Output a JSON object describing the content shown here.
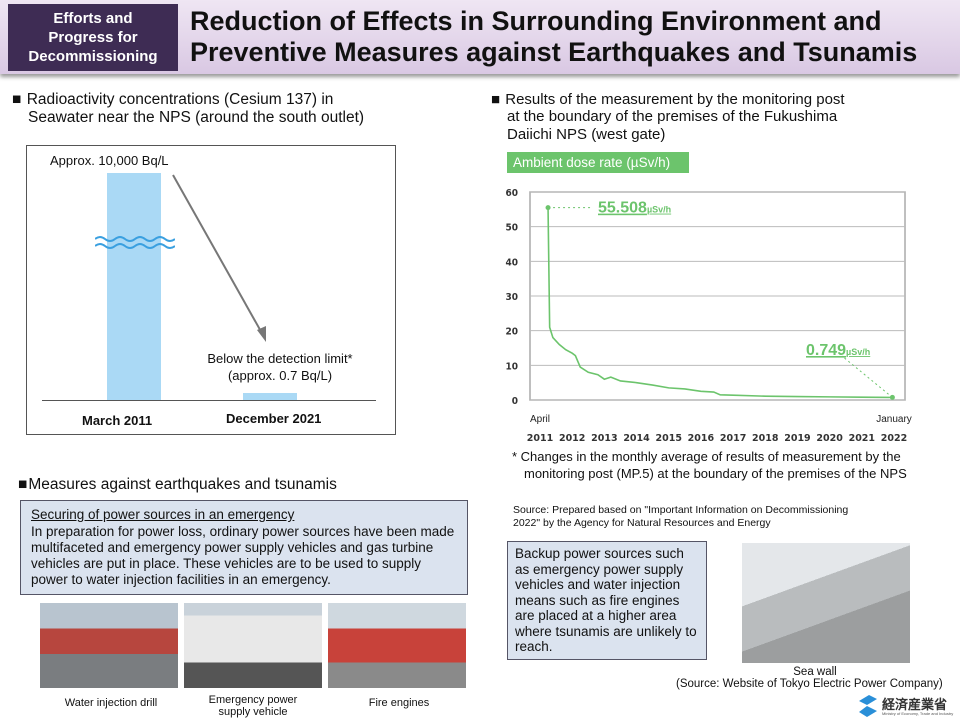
{
  "header": {
    "tag_lines": [
      "Efforts and",
      "Progress for",
      "Decommissioning"
    ],
    "title_lines": [
      "Reduction of Effects in Surrounding Environment and",
      "Preventive Measures against Earthquakes and Tsunamis"
    ]
  },
  "left_section": {
    "heading_lines": [
      "Radioactivity concentrations (Cesium 137) in",
      "Seawater near the NPS (around the south outlet)"
    ],
    "march_value": "Approx. 10,000 Bq/L",
    "dec_value_lines": [
      "Below the detection limit*",
      "(approx. 0.7 Bq/L)"
    ],
    "categories": [
      "March 2011",
      "December 2021"
    ]
  },
  "right_section": {
    "heading_lines": [
      "Results of the measurement by the monitoring post",
      "at the boundary of the premises of the Fukushima",
      "Daiichi NPS (west gate)"
    ],
    "note_lines": [
      "* Changes in the monthly average of results of measurement by the",
      "monitoring post (MP.5) at the boundary of the premises of the NPS"
    ],
    "source_lines": [
      "Source: Prepared based on \"Important Information on Decommissioning",
      "2022\" by the Agency for Natural Resources and Energy"
    ]
  },
  "chart_data": {
    "type": "line",
    "title": "Ambient dose rate (µSv/h)",
    "ylim": [
      0,
      60
    ],
    "yticks": [
      0,
      10,
      20,
      30,
      40,
      50,
      60
    ],
    "xticks": [
      "2011",
      "2012",
      "2013",
      "2014",
      "2015",
      "2016",
      "2017",
      "2018",
      "2019",
      "2020",
      "2021",
      "2022"
    ],
    "x_start_label": "April",
    "x_end_label": "January",
    "grid": true,
    "color": "#6cc46c",
    "points": [
      [
        2011.25,
        55.5
      ],
      [
        2011.3,
        21
      ],
      [
        2011.4,
        18
      ],
      [
        2011.6,
        16
      ],
      [
        2011.8,
        14.5
      ],
      [
        2012.0,
        13.5
      ],
      [
        2012.1,
        12.8
      ],
      [
        2012.25,
        9.5
      ],
      [
        2012.5,
        8
      ],
      [
        2012.8,
        7.3
      ],
      [
        2013.0,
        6
      ],
      [
        2013.2,
        6.6
      ],
      [
        2013.5,
        5.5
      ],
      [
        2014.0,
        5
      ],
      [
        2014.5,
        4.3
      ],
      [
        2015.0,
        3.5
      ],
      [
        2015.5,
        3.2
      ],
      [
        2016.0,
        2.5
      ],
      [
        2016.4,
        2.3
      ],
      [
        2016.6,
        1.5
      ],
      [
        2017.0,
        1.4
      ],
      [
        2018.0,
        1.1
      ],
      [
        2019.0,
        1.0
      ],
      [
        2020.0,
        0.9
      ],
      [
        2021.0,
        0.8
      ],
      [
        2021.95,
        0.749
      ]
    ],
    "annotations": [
      {
        "value": "55.508",
        "unit": "µSv/h"
      },
      {
        "value": "0.749",
        "unit": "µSv/h"
      }
    ]
  },
  "measures": {
    "heading": "Measures against earthquakes and tsunamis",
    "subheading": "Securing of power sources in an emergency",
    "body": "In preparation for power loss, ordinary power sources have been made multifaceted and emergency power supply vehicles and gas turbine vehicles are put in place. These vehicles are to be used to supply power to water injection facilities in an emergency.",
    "photos": [
      "Water injection drill",
      "Emergency power supply vehicle",
      "Fire engines"
    ]
  },
  "backup_text": "Backup power sources such as emergency power supply vehicles and water injection means such as fire engines are placed at a higher area where tsunamis are unlikely to reach.",
  "seawall": {
    "caption": "Sea wall",
    "source": "(Source: Website of Tokyo Electric Power Company)"
  },
  "logo": {
    "text": "経済産業省",
    "sub": "Ministry of Economy, Trade and Industry"
  }
}
